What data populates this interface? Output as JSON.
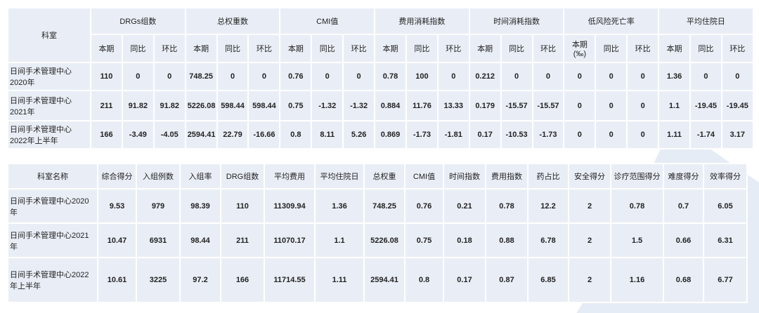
{
  "table1": {
    "corner": "科室",
    "groups": [
      "DRGs组数",
      "总权重数",
      "CMI值",
      "费用消耗指数",
      "时间消耗指数",
      "低风险死亡率",
      "平均住院日"
    ],
    "subheaders": [
      "本期",
      "同比",
      "环比",
      "本期",
      "同比",
      "环比",
      "本期",
      "同比",
      "环比",
      "本期",
      "同比",
      "环比",
      "本期",
      "同比",
      "环比",
      "本期(‰)",
      "同比",
      "环比",
      "本期",
      "同比",
      "环比"
    ],
    "rows": [
      {
        "label": "日间手术管理中心2020年",
        "cells": [
          "110",
          "0",
          "0",
          "748.25",
          "0",
          "0",
          "0.76",
          "0",
          "0",
          "0.78",
          "100",
          "0",
          "0.212",
          "0",
          "0",
          "0",
          "0",
          "0",
          "1.36",
          "0",
          "0"
        ]
      },
      {
        "label": "日间手术管理中心2021年",
        "cells": [
          "211",
          "91.82",
          "91.82",
          "5226.08",
          "598.44",
          "598.44",
          "0.75",
          "-1.32",
          "-1.32",
          "0.884",
          "11.76",
          "13.33",
          "0.179",
          "-15.57",
          "-15.57",
          "0",
          "0",
          "0",
          "1.1",
          "-19.45",
          "-19.45"
        ]
      },
      {
        "label": "日间手术管理中心2022年上半年",
        "cells": [
          "166",
          "-3.49",
          "-4.05",
          "2594.41",
          "22.79",
          "-16.66",
          "0.8",
          "8.11",
          "5.26",
          "0.869",
          "-1.73",
          "-1.81",
          "0.17",
          "-10.53",
          "-1.73",
          "0",
          "0",
          "0",
          "1.11",
          "-1.74",
          "3.17"
        ]
      }
    ]
  },
  "table2": {
    "headers": [
      "科室名称",
      "综合得分",
      "入组例数",
      "入组率",
      "DRG组数",
      "平均费用",
      "平均住院日",
      "总权重",
      "CMI值",
      "时间指数",
      "费用指数",
      "药占比",
      "安全得分",
      "诊疗范围得分",
      "难度得分",
      "效率得分"
    ],
    "rows": [
      [
        "日间手术管理中心2020年",
        "9.53",
        "979",
        "98.39",
        "110",
        "11309.94",
        "1.36",
        "748.25",
        "0.76",
        "0.21",
        "0.78",
        "12.2",
        "2",
        "0.78",
        "0.7",
        "6.05"
      ],
      [
        "日间手术管理中心2021年",
        "10.47",
        "6931",
        "98.44",
        "211",
        "11070.17",
        "1.1",
        "5226.08",
        "0.75",
        "0.18",
        "0.88",
        "6.78",
        "2",
        "1.5",
        "0.66",
        "6.31"
      ],
      [
        "日间手术管理中心2022年上半年",
        "10.61",
        "3225",
        "97.2",
        "166",
        "11714.55",
        "1.11",
        "2594.41",
        "0.8",
        "0.17",
        "0.87",
        "6.85",
        "2",
        "1.16",
        "0.68",
        "6.77"
      ]
    ]
  }
}
